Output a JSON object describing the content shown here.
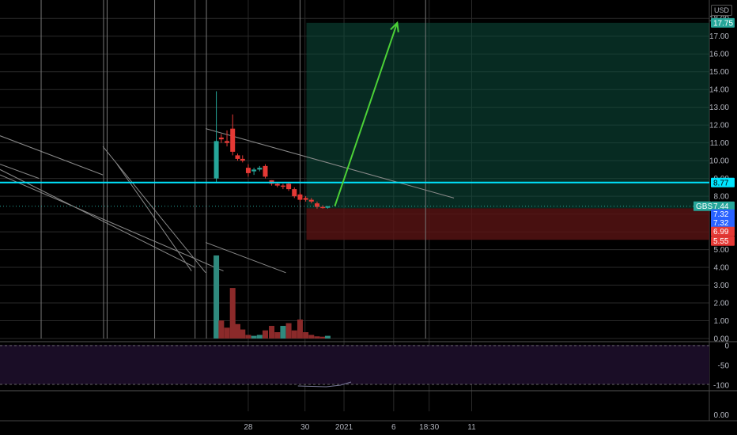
{
  "header": {
    "currency": "USD"
  },
  "colors": {
    "background": "#000000",
    "grid": "#2a2a2a",
    "up_candle": "#26a69a",
    "down_candle": "#e53935",
    "up_volume": "#2f8a7e",
    "down_volume": "#8b2a2a",
    "cyan_line": "#00e5ff",
    "arrow": "#4cd137",
    "profit_zone": "#0c4f3e",
    "loss_zone": "#5a1414",
    "oscillator_band": "#1a0d26"
  },
  "price_tags": [
    {
      "value": "17.75",
      "color": "#26a69a",
      "text_color": "light"
    },
    {
      "value": "8.77",
      "color": "#00e5ff",
      "text_color": "dark"
    },
    {
      "value": "7.44",
      "color": "#26a69a",
      "text_color": "light",
      "symbol": "GBS"
    },
    {
      "value": "7.32",
      "color": "#2962ff",
      "text_color": "light"
    },
    {
      "value": "7.32",
      "color": "#2962ff",
      "text_color": "light"
    },
    {
      "value": "6.99",
      "color": "#e53935",
      "text_color": "light"
    },
    {
      "value": "5.55",
      "color": "#e53935",
      "text_color": "light"
    }
  ],
  "price_axis": [
    "18.00",
    "17.00",
    "16.00",
    "15.00",
    "14.00",
    "13.00",
    "12.00",
    "11.00",
    "10.00",
    "9.00",
    "8.00",
    "7.00",
    "6.00",
    "5.00",
    "4.00",
    "3.00",
    "2.00",
    "1.00",
    "0.00"
  ],
  "oscillator_axis": [
    "0",
    "-50",
    "-100"
  ],
  "bottom_axis": [
    "0.00"
  ],
  "time_axis": [
    "28",
    "30",
    "2021",
    "6",
    "18:30",
    "11"
  ],
  "chart_data": {
    "type": "candlestick",
    "symbol": "GBS",
    "currency": "USD",
    "ylim": [
      0,
      18.5
    ],
    "x_range": [
      0,
      100
    ],
    "time_ticks": [
      {
        "label": "28",
        "x": 35
      },
      {
        "label": "30",
        "x": 43
      },
      {
        "label": "2021",
        "x": 48.5
      },
      {
        "label": "6",
        "x": 55.5
      },
      {
        "label": "18:30",
        "x": 60.5
      },
      {
        "label": "11",
        "x": 66.5
      }
    ],
    "candles": [
      {
        "x": 30.5,
        "o": 9.0,
        "h": 13.9,
        "l": 8.8,
        "c": 11.1
      },
      {
        "x": 31.2,
        "o": 11.3,
        "h": 11.5,
        "l": 11.0,
        "c": 11.2
      },
      {
        "x": 32.0,
        "o": 11.1,
        "h": 11.7,
        "l": 10.8,
        "c": 11.0
      },
      {
        "x": 32.8,
        "o": 11.8,
        "h": 12.6,
        "l": 10.3,
        "c": 10.5
      },
      {
        "x": 33.5,
        "o": 10.3,
        "h": 10.4,
        "l": 10.0,
        "c": 10.1
      },
      {
        "x": 34.2,
        "o": 10.1,
        "h": 10.3,
        "l": 9.9,
        "c": 10.0
      },
      {
        "x": 35.0,
        "o": 9.6,
        "h": 9.8,
        "l": 9.1,
        "c": 9.3
      },
      {
        "x": 35.8,
        "o": 9.4,
        "h": 9.6,
        "l": 9.2,
        "c": 9.5
      },
      {
        "x": 36.6,
        "o": 9.5,
        "h": 9.7,
        "l": 9.4,
        "c": 9.6
      },
      {
        "x": 37.4,
        "o": 9.7,
        "h": 9.8,
        "l": 9.0,
        "c": 9.1
      },
      {
        "x": 38.3,
        "o": 8.9,
        "h": 8.9,
        "l": 8.6,
        "c": 8.7
      },
      {
        "x": 39.1,
        "o": 8.7,
        "h": 8.8,
        "l": 8.5,
        "c": 8.6
      },
      {
        "x": 39.9,
        "o": 8.6,
        "h": 8.7,
        "l": 8.4,
        "c": 8.55
      },
      {
        "x": 40.7,
        "o": 8.7,
        "h": 8.8,
        "l": 8.3,
        "c": 8.4
      },
      {
        "x": 41.5,
        "o": 8.4,
        "h": 8.5,
        "l": 7.9,
        "c": 8.0
      },
      {
        "x": 42.3,
        "o": 8.1,
        "h": 8.2,
        "l": 7.7,
        "c": 7.8
      },
      {
        "x": 43.1,
        "o": 7.9,
        "h": 8.0,
        "l": 7.7,
        "c": 7.8
      },
      {
        "x": 43.9,
        "o": 7.8,
        "h": 7.9,
        "l": 7.6,
        "c": 7.7
      },
      {
        "x": 44.7,
        "o": 7.6,
        "h": 7.7,
        "l": 7.3,
        "c": 7.4
      },
      {
        "x": 45.5,
        "o": 7.4,
        "h": 7.5,
        "l": 7.3,
        "c": 7.35
      },
      {
        "x": 46.2,
        "o": 7.35,
        "h": 7.45,
        "l": 7.3,
        "c": 7.44
      }
    ],
    "volume_ylim": [
      0,
      4.6
    ],
    "volume": [
      {
        "x": 30.5,
        "v": 4.6,
        "up": true
      },
      {
        "x": 31.2,
        "v": 1.0,
        "up": false
      },
      {
        "x": 32.0,
        "v": 0.6,
        "up": false
      },
      {
        "x": 32.8,
        "v": 2.8,
        "up": false
      },
      {
        "x": 33.5,
        "v": 0.8,
        "up": false
      },
      {
        "x": 34.2,
        "v": 0.5,
        "up": false
      },
      {
        "x": 35.0,
        "v": 0.2,
        "up": false
      },
      {
        "x": 35.8,
        "v": 0.15,
        "up": true
      },
      {
        "x": 36.6,
        "v": 0.2,
        "up": true
      },
      {
        "x": 37.4,
        "v": 0.45,
        "up": false
      },
      {
        "x": 38.3,
        "v": 0.7,
        "up": false
      },
      {
        "x": 39.1,
        "v": 0.35,
        "up": false
      },
      {
        "x": 39.9,
        "v": 0.7,
        "up": true
      },
      {
        "x": 40.7,
        "v": 0.85,
        "up": false
      },
      {
        "x": 41.5,
        "v": 0.45,
        "up": false
      },
      {
        "x": 42.3,
        "v": 1.05,
        "up": false
      },
      {
        "x": 43.1,
        "v": 0.35,
        "up": false
      },
      {
        "x": 43.9,
        "v": 0.2,
        "up": false
      },
      {
        "x": 44.7,
        "v": 0.12,
        "up": false
      },
      {
        "x": 45.5,
        "v": 0.1,
        "up": false
      },
      {
        "x": 46.2,
        "v": 0.15,
        "up": true
      }
    ],
    "horizontal_line": {
      "price": 8.77
    },
    "position_box": {
      "x_start": 43.2,
      "entry": 7.32,
      "target": 17.75,
      "stop": 5.55
    },
    "arrow": {
      "from": {
        "x": 47.2,
        "y": 7.44
      },
      "to": {
        "x": 56.0,
        "y": 17.75
      }
    },
    "trend_lines": [
      {
        "from": {
          "x": 0,
          "y": 11.4
        },
        "to": {
          "x": 14.5,
          "y": 9.2
        }
      },
      {
        "from": {
          "x": 0,
          "y": 9.8
        },
        "to": {
          "x": 5.5,
          "y": 9.0
        }
      },
      {
        "from": {
          "x": 0,
          "y": 9.2
        },
        "to": {
          "x": 31.5,
          "y": 3.8
        }
      },
      {
        "from": {
          "x": 0,
          "y": 9.5
        },
        "to": {
          "x": 27.5,
          "y": 4.0
        }
      },
      {
        "from": {
          "x": 14.5,
          "y": 10.8
        },
        "to": {
          "x": 29.0,
          "y": 3.7
        }
      },
      {
        "from": {
          "x": 16.5,
          "y": 9.8
        },
        "to": {
          "x": 27.0,
          "y": 3.8
        }
      },
      {
        "from": {
          "x": 29.0,
          "y": 11.8
        },
        "to": {
          "x": 64.0,
          "y": 7.9
        }
      },
      {
        "from": {
          "x": 29.0,
          "y": 5.4
        },
        "to": {
          "x": 40.3,
          "y": 3.7
        }
      }
    ],
    "vertical_lines": [
      5.8,
      14.6,
      15.1,
      21.8,
      27.5,
      29.1,
      42.3,
      60.0
    ]
  }
}
